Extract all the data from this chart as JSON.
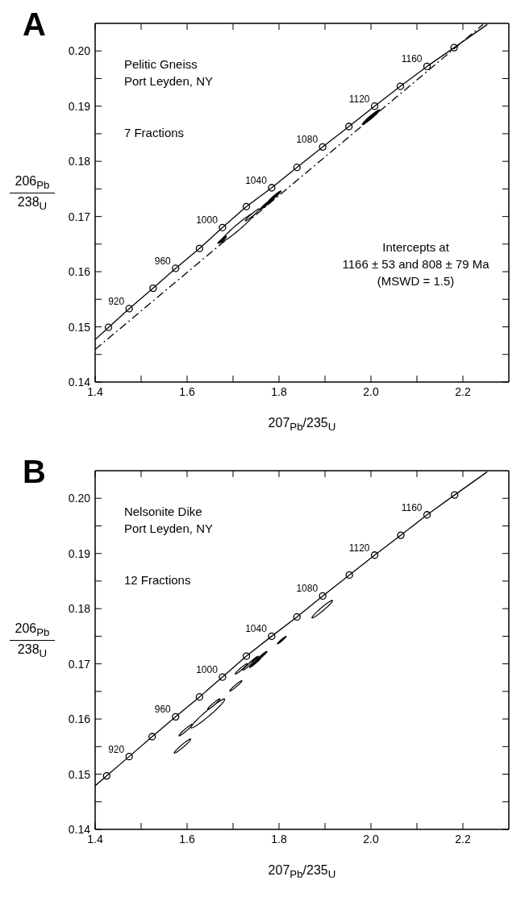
{
  "chart_data": [
    {
      "type": "line",
      "title": "A",
      "xlabel": "207$_{Pb}$/235$_{U}$",
      "ylabel": "206$_{Pb}$\n238$_{U}$",
      "xlim": [
        1.4,
        2.3
      ],
      "ylim": [
        0.14,
        0.205
      ],
      "xticks": [
        1.4,
        {
          "value": 1.5,
          "label": null
        },
        1.6,
        {
          "value": 1.7,
          "label": null
        },
        1.8,
        {
          "value": 1.9,
          "label": null
        },
        {
          "value": 2.0,
          "label": "2.0"
        },
        {
          "value": 2.1,
          "label": null
        },
        2.2
      ],
      "yticks": [
        0.14,
        {
          "value": 0.145,
          "label": null
        },
        0.15,
        {
          "value": 0.155,
          "label": null
        },
        0.16,
        {
          "value": 0.165,
          "label": null
        },
        0.17,
        {
          "value": 0.175,
          "label": null
        },
        0.18,
        {
          "value": 0.185,
          "label": null
        },
        0.19,
        {
          "value": 0.195,
          "label": null
        },
        {
          "value": 0.2,
          "label": "0.20"
        }
      ],
      "series": [
        {
          "type": "scatter",
          "color": "#000000",
          "x": [
            1.71,
            1.676,
            1.677,
            1.742,
            1.772,
            1.79,
            2.0
          ],
          "values": [
            0.168,
            0.1658,
            0.1657,
            0.1703,
            0.1722,
            0.1736,
            0.188
          ],
          "sizes": [
            1,
            0.062,
            0.048,
            0.175,
            0.129,
            0.152,
            0.263
          ],
          "colors": [
            "#ffffff",
            "#ffffff",
            "#000000",
            "#ffffff",
            "#000000",
            "#000000",
            "#000000"
          ]
        },
        {
          "color": "#000000",
          "line_style": "solid",
          "marker": "none",
          "x": [
            1.4,
            1.429,
            1.474,
            1.526,
            1.575,
            1.627,
            1.677,
            1.729,
            1.784,
            1.839,
            1.895,
            1.952,
            2.008,
            2.064,
            2.122,
            2.181,
            2.253
          ],
          "values": [
            0.1477,
            0.1499,
            0.1533,
            0.157,
            0.1606,
            0.1642,
            0.168,
            0.1718,
            0.1752,
            0.1789,
            0.1826,
            0.1863,
            0.19,
            0.1936,
            0.1972,
            0.2006,
            0.2048
          ]
        },
        {
          "type": "scatter",
          "color": "#000000",
          "marker": "circle",
          "x": [
            1.429,
            1.474,
            1.526,
            1.575,
            1.627,
            1.677,
            1.729,
            1.784,
            1.839,
            1.895,
            1.952,
            2.008,
            2.064,
            2.122,
            2.181
          ],
          "values": [
            0.1499,
            0.1533,
            0.157,
            0.1606,
            0.1642,
            0.168,
            0.1718,
            0.1752,
            0.1789,
            0.1826,
            0.1863,
            0.19,
            0.1936,
            0.1972,
            0.2006
          ]
        },
        {
          "color": "#000000",
          "line_style": "dashed",
          "marker": "none",
          "x": [
            1.4,
            2.244
          ],
          "values": [
            0.1459,
            0.2048
          ]
        }
      ],
      "annotations": [
        "Pelitic Gneiss\nPort Leyden, NY",
        "7 Fractions",
        "Intercepts at\n1166 ± 53 and 808 ± 79 Ma\n(MSWD = 1.5)",
        {
          "text": "920",
          "x": 1.474,
          "y": 0.1533
        },
        {
          "text": "960",
          "x": 1.575,
          "y": 0.1606
        },
        {
          "text": "1000",
          "x": 1.677,
          "y": 0.168
        },
        {
          "text": "1040",
          "x": 1.784,
          "y": 0.1752
        },
        {
          "text": "1080",
          "x": 1.895,
          "y": 0.1826
        },
        {
          "text": "1120",
          "x": 2.008,
          "y": 0.19
        },
        {
          "text": "1160",
          "x": 2.122,
          "y": 0.1972
        }
      ]
    },
    {
      "type": "line",
      "title": "B",
      "xlabel": "207$_{Pb}$/235$_{U}$",
      "ylabel": "206$_{Pb}$\n238$_{U}$",
      "xlim": [
        1.4,
        2.3
      ],
      "ylim": [
        0.14,
        0.205
      ],
      "xticks": [
        1.4,
        {
          "value": 1.5,
          "label": null
        },
        1.6,
        {
          "value": 1.7,
          "label": null
        },
        1.8,
        {
          "value": 1.9,
          "label": null
        },
        {
          "value": 2.0,
          "label": "2.0"
        },
        {
          "value": 2.1,
          "label": null
        },
        2.2
      ],
      "yticks": [
        0.14,
        {
          "value": 0.145,
          "label": null
        },
        0.15,
        {
          "value": 0.155,
          "label": null
        },
        0.16,
        {
          "value": 0.165,
          "label": null
        },
        0.17,
        {
          "value": 0.175,
          "label": null
        },
        0.18,
        {
          "value": 0.185,
          "label": null
        },
        0.19,
        {
          "value": 0.195,
          "label": null
        },
        {
          "value": 0.2,
          "label": "0.20"
        }
      ],
      "series": [
        {
          "type": "scatter",
          "color": "#000000",
          "x": [
            1.894,
            1.806,
            1.748,
            1.762,
            1.744,
            1.718,
            1.733,
            1.706,
            1.645,
            1.658,
            1.597,
            1.59
          ],
          "values": [
            0.1799,
            0.1743,
            0.1702,
            0.1714,
            0.1706,
            0.1691,
            0.1697,
            0.166,
            0.161,
            0.1627,
            0.158,
            0.1551
          ],
          "sizes": [
            0.366,
            0.066,
            0.105,
            0.105,
            0.087,
            0.131,
            0.105,
            0.131,
            1,
            0.134,
            0.159,
            0.237
          ],
          "colors": [
            "#ffffff",
            "#000000",
            "#000000",
            "#000000",
            "#000000",
            "#ffffff",
            "#ffffff",
            "#ffffff",
            "#ffffff",
            "#ffffff",
            "#ffffff",
            "#ffffff"
          ]
        },
        {
          "color": "#000000",
          "line_style": "solid",
          "marker": "none",
          "x": [
            1.4,
            1.425,
            1.474,
            1.524,
            1.575,
            1.627,
            1.677,
            1.729,
            1.784,
            1.839,
            1.895,
            1.953,
            2.008,
            2.065,
            2.122,
            2.182,
            2.253
          ],
          "values": [
            0.1479,
            0.1497,
            0.1532,
            0.1568,
            0.1604,
            0.164,
            0.1676,
            0.1714,
            0.175,
            0.1785,
            0.1823,
            0.1861,
            0.1897,
            0.1933,
            0.197,
            0.2006,
            0.2048
          ]
        },
        {
          "type": "scatter",
          "color": "#000000",
          "marker": "circle",
          "x": [
            1.425,
            1.474,
            1.524,
            1.575,
            1.627,
            1.677,
            1.729,
            1.784,
            1.839,
            1.895,
            1.953,
            2.008,
            2.065,
            2.122,
            2.182
          ],
          "values": [
            0.1497,
            0.1532,
            0.1568,
            0.1604,
            0.164,
            0.1676,
            0.1714,
            0.175,
            0.1785,
            0.1823,
            0.1861,
            0.1897,
            0.1933,
            0.197,
            0.2006
          ]
        }
      ],
      "annotations": [
        "Nelsonite Dike\nPort Leyden, NY",
        "12 Fractions",
        {
          "text": "920",
          "x": 1.474,
          "y": 0.1532
        },
        {
          "text": "960",
          "x": 1.575,
          "y": 0.1604
        },
        {
          "text": "1000",
          "x": 1.677,
          "y": 0.1676
        },
        {
          "text": "1040",
          "x": 1.784,
          "y": 0.175
        },
        {
          "text": "1080",
          "x": 1.895,
          "y": 0.1823
        },
        {
          "text": "1120",
          "x": 2.008,
          "y": 0.1897
        },
        {
          "text": "1160",
          "x": 2.122,
          "y": 0.197
        }
      ]
    }
  ]
}
